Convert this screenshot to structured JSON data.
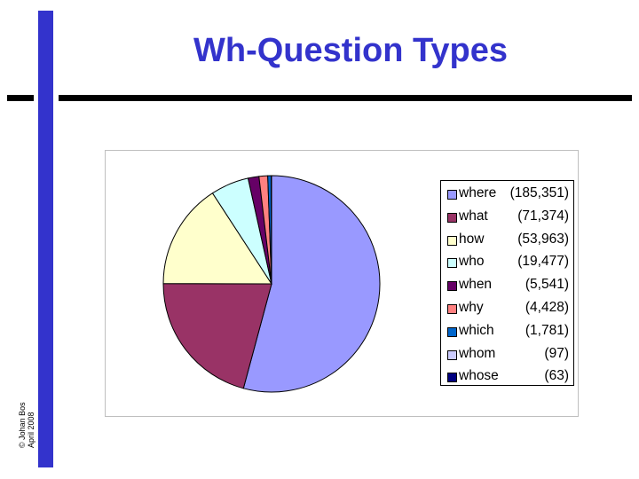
{
  "slide": {
    "title": "Wh-Question Types",
    "credit_line1": "© Johan Bos",
    "credit_line2": "April 2008"
  },
  "chart_data": {
    "type": "pie",
    "title": "",
    "categories": [
      "where",
      "what",
      "how",
      "who",
      "when",
      "why",
      "which",
      "whom",
      "whose"
    ],
    "values": [
      185351,
      71374,
      53963,
      19477,
      5541,
      4428,
      1781,
      97,
      63
    ],
    "display_counts": [
      "(185,351)",
      "(71,374)",
      "(53,963)",
      "(19,477)",
      "(5,541)",
      "(4,428)",
      "(1,781)",
      "(97)",
      "(63)"
    ],
    "colors": [
      "#9999ff",
      "#993366",
      "#ffffcc",
      "#ccffff",
      "#660066",
      "#ff8080",
      "#0066cc",
      "#ccccff",
      "#000080"
    ],
    "legend_position": "right"
  }
}
